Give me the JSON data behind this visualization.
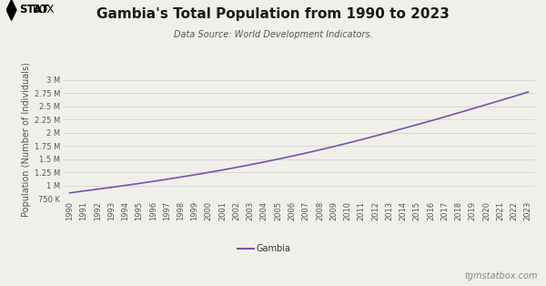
{
  "title": "Gambia's Total Population from 1990 to 2023",
  "subtitle": "Data Source: World Development Indicators.",
  "ylabel": "Population (Number of Individuals)",
  "line_color": "#7B52AB",
  "line_label": "Gambia",
  "background_color": "#f0f0eb",
  "years": [
    1990,
    1991,
    1992,
    1993,
    1994,
    1995,
    1996,
    1997,
    1998,
    1999,
    2000,
    2001,
    2002,
    2003,
    2004,
    2005,
    2006,
    2007,
    2008,
    2009,
    2010,
    2011,
    2012,
    2013,
    2014,
    2015,
    2016,
    2017,
    2018,
    2019,
    2020,
    2021,
    2022,
    2023
  ],
  "population": [
    861295,
    896979,
    931819,
    967049,
    1003277,
    1040859,
    1079780,
    1120104,
    1161940,
    1205268,
    1249834,
    1296169,
    1344701,
    1395317,
    1447762,
    1502085,
    1558360,
    1616696,
    1677050,
    1739640,
    1804667,
    1871605,
    1940948,
    2011685,
    2082926,
    2154634,
    2228073,
    2303399,
    2380560,
    2457693,
    2535520,
    2613898,
    2692846,
    2773168
  ],
  "ylim_min": 750000,
  "ylim_max": 3000000,
  "yticks": [
    750000,
    1000000,
    1250000,
    1500000,
    1750000,
    2000000,
    2250000,
    2500000,
    2750000,
    3000000
  ],
  "ytick_labels": [
    "750 K",
    "1 M",
    "1.25 M",
    "1.5 M",
    "1.75 M",
    "2 M",
    "2.25 M",
    "2.5 M",
    "2.75 M",
    "3 M"
  ],
  "footer_text": "tgmstatbox.com",
  "title_fontsize": 11,
  "subtitle_fontsize": 7,
  "axis_label_fontsize": 7,
  "tick_fontsize": 6,
  "legend_fontsize": 7,
  "footer_fontsize": 7
}
